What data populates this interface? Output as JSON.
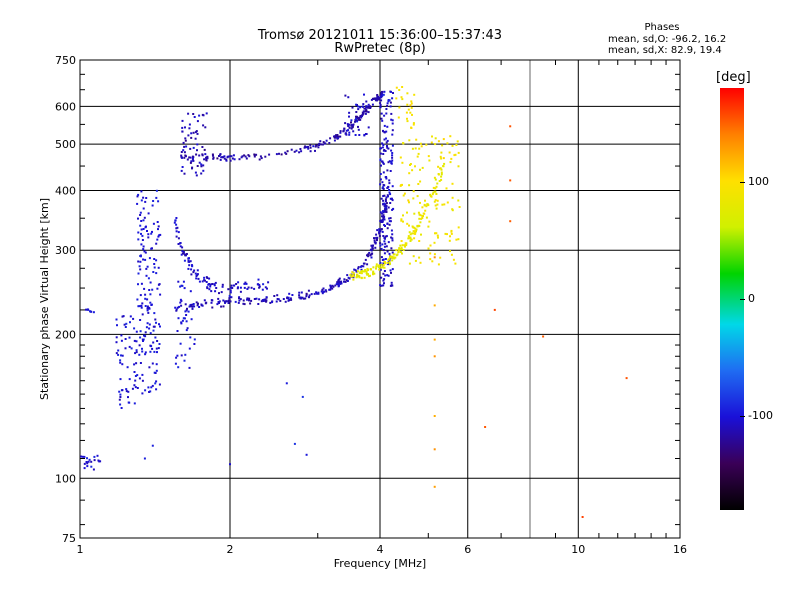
{
  "header": {
    "title": "Tromsø 20121011 15:36:00–15:37:43",
    "subtitle": "RwPretec (8p)"
  },
  "info": {
    "heading": "Phases",
    "line_o": "mean, sd,O: -96.2, 16.2",
    "line_x": "mean, sd,X: 82.9, 19.4"
  },
  "colorbar": {
    "unit": "[deg]",
    "ticks": [
      {
        "value": 100,
        "label": "100"
      },
      {
        "value": 0,
        "label": "0"
      },
      {
        "value": -100,
        "label": "-100"
      }
    ],
    "range": [
      -180,
      180
    ],
    "stops": [
      "#000000",
      "#3a0057",
      "#1a10d8",
      "#1f6cf2",
      "#00d8e8",
      "#00d400",
      "#d0f000",
      "#ffe000",
      "#ff8000",
      "#ff0000"
    ]
  },
  "chart_data": {
    "type": "scatter",
    "xlabel": "Frequency [MHz]",
    "ylabel": "Stationary phase Virtual Height [km]",
    "xscale": "log",
    "yscale": "log",
    "xlim": [
      1,
      16
    ],
    "ylim": [
      75,
      750
    ],
    "x_ticks": [
      {
        "value": 1,
        "label": "1"
      },
      {
        "value": 2,
        "label": "2"
      },
      {
        "value": 4,
        "label": "4"
      },
      {
        "value": 6,
        "label": "6"
      },
      {
        "value": 10,
        "label": "10"
      },
      {
        "value": 16,
        "label": "16"
      }
    ],
    "x_major_grid": [
      2,
      4,
      6,
      10
    ],
    "x_minor_grid": [
      8
    ],
    "y_ticks": [
      {
        "value": 75,
        "label": "75"
      },
      {
        "value": 100,
        "label": "100"
      },
      {
        "value": 200,
        "label": "200"
      },
      {
        "value": 300,
        "label": "300"
      },
      {
        "value": 400,
        "label": "400"
      },
      {
        "value": 500,
        "label": "500"
      },
      {
        "value": 600,
        "label": "600"
      },
      {
        "value": 750,
        "label": "750"
      }
    ],
    "y_grid": [
      100,
      200,
      300,
      400,
      500,
      600
    ],
    "color_scale": "phase [deg]",
    "series": [
      {
        "kind": "curve",
        "x": [
          1.6,
          1.8,
          2.0,
          2.4,
          2.9,
          3.2,
          3.5,
          3.7,
          3.9,
          4.05
        ],
        "y": [
          475,
          470,
          468,
          472,
          490,
          510,
          545,
          580,
          615,
          640
        ],
        "spread": 0.025,
        "hue": -115,
        "n": 210
      },
      {
        "kind": "curve",
        "x": [
          1.55,
          1.8,
          2.0,
          2.4,
          2.8,
          3.2,
          3.5,
          3.8,
          4.0,
          4.15
        ],
        "y": [
          228,
          232,
          234,
          236,
          240,
          250,
          265,
          290,
          330,
          390
        ],
        "spread": 0.03,
        "hue": -110,
        "n": 260
      },
      {
        "kind": "curve",
        "x": [
          1.55,
          1.6,
          1.7,
          1.8,
          1.9,
          2.1,
          2.4
        ],
        "y": [
          350,
          300,
          270,
          255,
          250,
          250,
          255
        ],
        "spread": 0.045,
        "hue": -105,
        "n": 110
      },
      {
        "kind": "vband",
        "x": [
          4.0,
          4.25
        ],
        "y": [
          250,
          650
        ],
        "hue": -105,
        "n": 200
      },
      {
        "kind": "vband",
        "x": [
          1.3,
          1.45
        ],
        "y": [
          150,
          400
        ],
        "hue": -100,
        "n": 170
      },
      {
        "kind": "vband",
        "x": [
          1.18,
          1.3
        ],
        "y": [
          140,
          220
        ],
        "hue": -100,
        "n": 60
      },
      {
        "kind": "vband",
        "x": [
          1.55,
          1.7
        ],
        "y": [
          170,
          260
        ],
        "hue": -100,
        "n": 40
      },
      {
        "kind": "vband",
        "x": [
          1.6,
          1.8
        ],
        "y": [
          430,
          580
        ],
        "hue": -110,
        "n": 60
      },
      {
        "kind": "vband",
        "x": [
          3.4,
          3.8
        ],
        "y": [
          520,
          640
        ],
        "hue": -105,
        "n": 40
      },
      {
        "kind": "curve",
        "x": [
          3.5,
          3.8,
          4.1,
          4.4,
          4.7,
          5.0,
          5.4
        ],
        "y": [
          265,
          270,
          280,
          300,
          330,
          380,
          450
        ],
        "spread": 0.04,
        "hue": 80,
        "n": 160
      },
      {
        "kind": "vband",
        "x": [
          4.4,
          5.8
        ],
        "y": [
          280,
          520
        ],
        "hue": 90,
        "n": 140
      },
      {
        "kind": "vband",
        "x": [
          4.3,
          4.7
        ],
        "y": [
          540,
          660
        ],
        "hue": 95,
        "n": 25
      },
      {
        "kind": "vband",
        "x": [
          1.0,
          1.1
        ],
        "y": [
          104,
          112
        ],
        "hue": -100,
        "n": 20
      },
      {
        "kind": "vband",
        "x": [
          1.0,
          1.08
        ],
        "y": [
          222,
          228
        ],
        "hue": -100,
        "n": 8
      },
      {
        "kind": "points",
        "x": [
          5.15,
          5.15,
          5.15,
          5.15,
          5.15,
          5.15,
          5.15
        ],
        "y": [
          290,
          230,
          195,
          180,
          135,
          115,
          96
        ],
        "hue": 130
      },
      {
        "kind": "points",
        "x": [
          7.3,
          7.3,
          7.3,
          6.8,
          6.5,
          8.5,
          10.2,
          12.5
        ],
        "y": [
          545,
          420,
          345,
          225,
          128,
          198,
          83,
          162
        ],
        "hue": 150
      },
      {
        "kind": "points",
        "x": [
          2.6,
          2.8,
          2.7,
          2.85,
          1.35,
          1.4,
          2.0
        ],
        "y": [
          158,
          148,
          118,
          112,
          110,
          117,
          107
        ],
        "hue": -90
      }
    ]
  }
}
